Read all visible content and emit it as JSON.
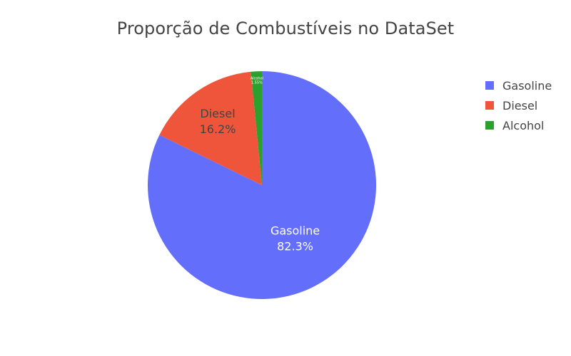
{
  "chart_data": {
    "type": "pie",
    "title": "Proporção de Combustíveis no DataSet",
    "categories": [
      "Gasoline",
      "Diesel",
      "Alcohol"
    ],
    "values": [
      82.3,
      16.2,
      1.55
    ],
    "labels_percent": [
      "82.3%",
      "16.2%",
      "1.55%"
    ],
    "colors": [
      "#636efa",
      "#ef553b",
      "#2ca02c"
    ],
    "text_colors": [
      "#ffffff",
      "#444444",
      "#ffffff"
    ],
    "legend_position": "top-right",
    "direction": "clockwise",
    "start": "top"
  },
  "legend": {
    "items": [
      {
        "label": "Gasoline",
        "color": "#636efa"
      },
      {
        "label": "Diesel",
        "color": "#ef553b"
      },
      {
        "label": "Alcohol",
        "color": "#2ca02c"
      }
    ]
  }
}
